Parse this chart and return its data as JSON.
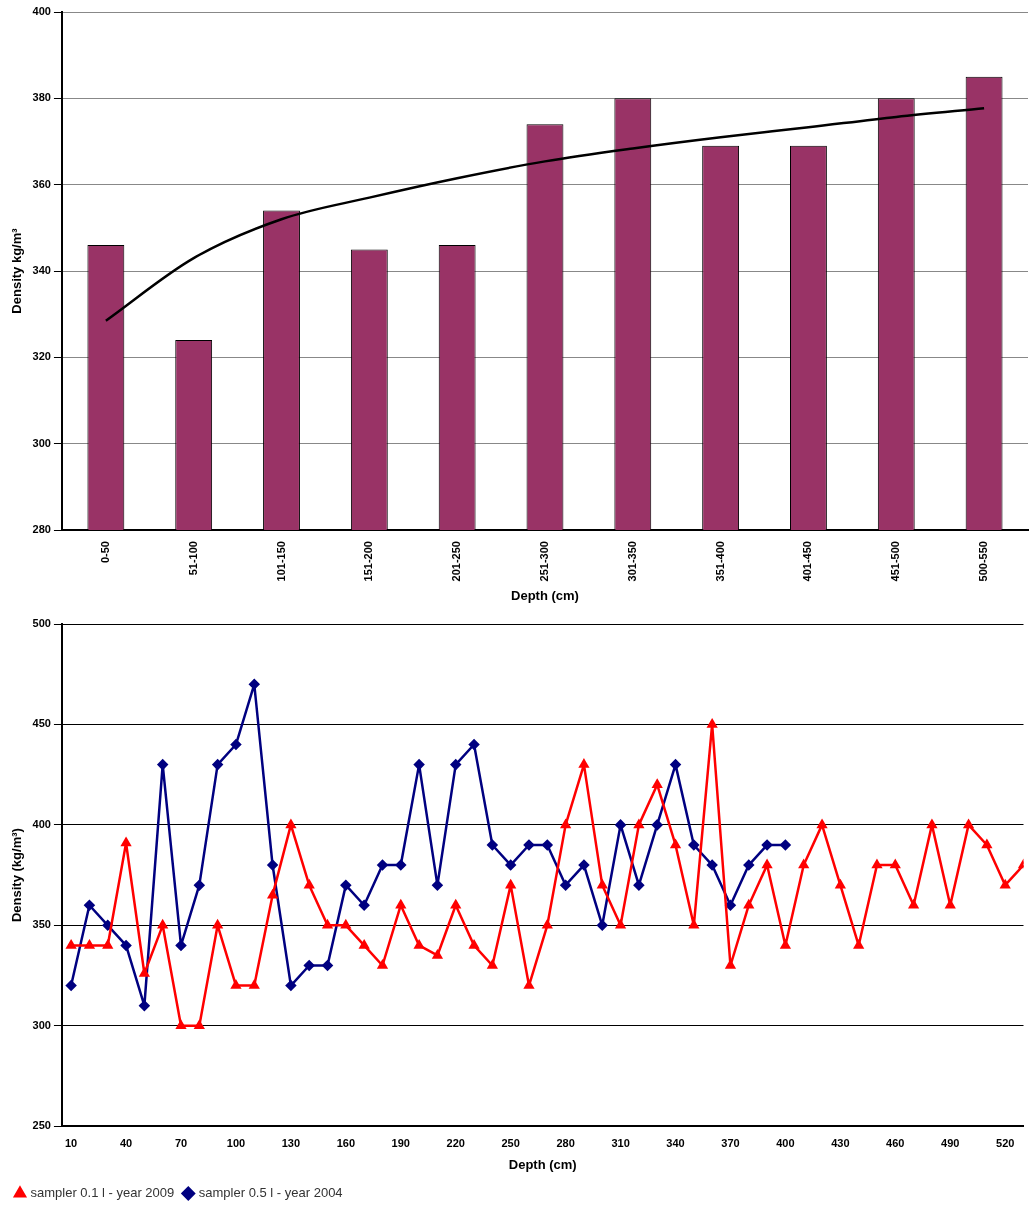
{
  "chart_data": [
    {
      "type": "bar",
      "xlabel": "Depth (cm)",
      "ylabel": "Density kg/m³",
      "categories": [
        "0-50",
        "51-100",
        "101-150",
        "151-200",
        "201-250",
        "251-300",
        "301-350",
        "351-400",
        "401-450",
        "451-500",
        "500-550"
      ],
      "series": [
        {
          "type": "bar",
          "color": "#993366",
          "values": [
            346,
            324,
            354,
            345,
            346,
            374,
            380,
            369,
            369,
            380,
            385
          ]
        },
        {
          "type": "line",
          "color": "#000000",
          "marker": "none",
          "values": [
            328.5,
            343,
            352,
            357,
            361.5,
            365.4,
            368.4,
            371,
            373.3,
            375.7,
            377.7
          ]
        }
      ],
      "ylim": [
        280,
        400
      ],
      "yticks": [
        280,
        300,
        320,
        340,
        360,
        380,
        400
      ],
      "grid": "y",
      "legend": false
    },
    {
      "type": "line",
      "xlabel": "Depth (cm)",
      "ylabel": "Density (kg/m³)",
      "series": [
        {
          "name": "sampler 0.1 l - year 2009",
          "color": "#ff0000",
          "marker": "triangle",
          "x": [
            10,
            20,
            30,
            40,
            50,
            60,
            70,
            80,
            90,
            100,
            110,
            120,
            130,
            140,
            150,
            160,
            170,
            180,
            190,
            200,
            210,
            220,
            230,
            240,
            250,
            260,
            270,
            280,
            290,
            300,
            310,
            320,
            330,
            340,
            350,
            360,
            370,
            380,
            390,
            400,
            410,
            420,
            430,
            440,
            450,
            460,
            470,
            480,
            490,
            500,
            510,
            520,
            530
          ],
          "values": [
            340,
            340,
            340,
            391,
            326,
            350,
            300,
            300,
            350,
            320,
            320,
            365,
            400,
            370,
            350,
            350,
            340,
            330,
            360,
            340,
            335,
            360,
            340,
            330,
            370,
            320,
            350,
            400,
            430,
            370,
            350,
            400,
            420,
            390,
            350,
            450,
            330,
            360,
            380,
            340,
            380,
            400,
            370,
            340,
            380,
            380,
            360,
            400,
            360,
            400,
            390,
            370,
            380
          ]
        },
        {
          "name": "sampler 0.5 l - year 2004",
          "color": "#000080",
          "marker": "diamond",
          "x": [
            10,
            20,
            30,
            40,
            50,
            60,
            70,
            80,
            90,
            100,
            110,
            120,
            130,
            140,
            150,
            160,
            170,
            180,
            190,
            200,
            210,
            220,
            230,
            240,
            250,
            260,
            270,
            280,
            290,
            300,
            310,
            320,
            330,
            340,
            350,
            360,
            370,
            380,
            390,
            400
          ],
          "values": [
            320,
            360,
            350,
            340,
            310,
            430,
            340,
            370,
            430,
            440,
            470,
            380,
            320,
            330,
            330,
            370,
            360,
            380,
            380,
            430,
            370,
            430,
            440,
            390,
            380,
            390,
            390,
            370,
            380,
            350,
            400,
            370,
            400,
            430,
            390,
            380,
            360,
            380,
            390,
            390
          ]
        }
      ],
      "xlim": [
        5,
        530
      ],
      "xticks": [
        10,
        40,
        70,
        100,
        130,
        160,
        190,
        220,
        250,
        280,
        310,
        340,
        370,
        400,
        430,
        460,
        490,
        520
      ],
      "ylim": [
        250,
        500
      ],
      "yticks": [
        250,
        300,
        350,
        400,
        450,
        500
      ],
      "grid": "y",
      "legend": "bottom left"
    }
  ]
}
